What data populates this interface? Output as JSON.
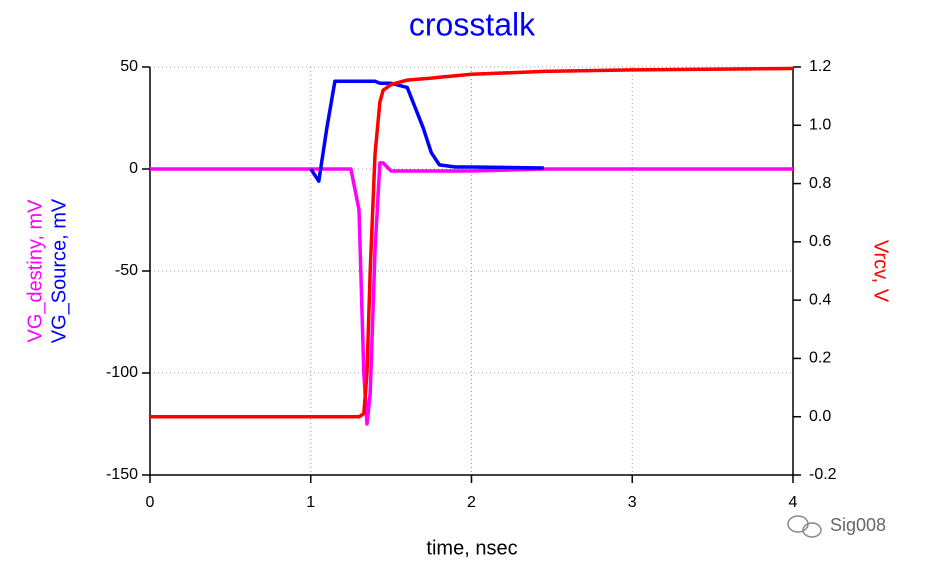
{
  "chart_data": {
    "type": "line",
    "title": "crosstalk",
    "x_label": "time, nsec",
    "y_label": "VG_destiny, mV",
    "y_label_2": "VG_Source, mV",
    "y2_label": "Vrcv, V",
    "watermark": "Sig008",
    "x": [
      0,
      1.0,
      1.05,
      1.1,
      1.15,
      1.2,
      1.25,
      1.3,
      1.33,
      1.35,
      1.37,
      1.4,
      1.43,
      1.45,
      1.5,
      1.6,
      1.7,
      1.75,
      1.8,
      1.9,
      2.0,
      2.45,
      3.0,
      4.0
    ],
    "series": [
      {
        "name": "VG_destiny",
        "color": "#ff00ff",
        "axis": "y",
        "values": [
          0,
          0,
          0,
          0,
          0,
          0,
          0,
          -20,
          -100,
          -125,
          -110,
          -40,
          3,
          3,
          -1,
          -1,
          -1,
          -1,
          -1,
          -1,
          -1,
          0,
          0,
          0
        ]
      },
      {
        "name": "VG_Source",
        "color": "#0000ff",
        "axis": "y",
        "values": [
          null,
          0,
          -6,
          20,
          43,
          43,
          43,
          43,
          43,
          43,
          43,
          43,
          42,
          42,
          42,
          40,
          20,
          8,
          2,
          1,
          1,
          0.5,
          null,
          null
        ]
      },
      {
        "name": "Vrcv",
        "color": "#ff0000",
        "axis": "y2",
        "values": [
          0,
          0,
          0,
          0,
          0,
          0,
          0,
          0,
          0.01,
          0.15,
          0.5,
          0.9,
          1.08,
          1.12,
          1.14,
          1.155,
          1.16,
          1.162,
          1.165,
          1.17,
          1.175,
          1.185,
          1.19,
          1.195
        ]
      }
    ],
    "xlim": [
      0,
      4
    ],
    "xticks": [
      0,
      1,
      2,
      3,
      4
    ],
    "ylim": [
      -150,
      50
    ],
    "yticks": [
      -150,
      -100,
      -50,
      0,
      50
    ],
    "y2lim": [
      -0.2,
      1.2
    ],
    "y2ticks": [
      -0.2,
      {
        "value": 0,
        "label": "0.0"
      },
      0.2,
      0.4,
      0.6,
      0.8,
      {
        "value": 1,
        "label": "1.0"
      },
      1.2
    ],
    "grid": true
  }
}
